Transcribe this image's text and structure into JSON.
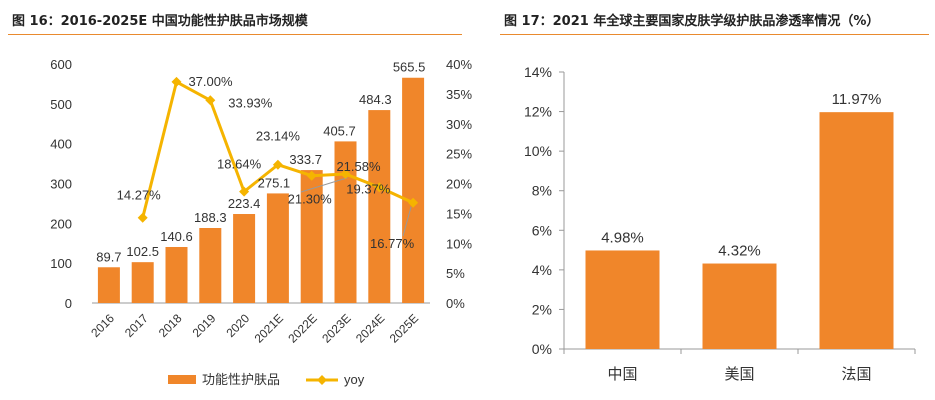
{
  "colors": {
    "bar": "#f0862a",
    "line": "#f5b400",
    "title_rule": "#e98a2e",
    "axis": "#999999",
    "text": "#333333"
  },
  "left": {
    "fig_title": "图 16：2016-2025E 中国功能性护肤品市场规模",
    "legend": {
      "bar_label": "功能性护肤品",
      "line_label": "yoy"
    }
  },
  "right": {
    "fig_title": "图 17：2021 年全球主要国家皮肤学级护肤品渗透率情况（%）"
  },
  "chart_data": [
    {
      "type": "bar",
      "categories": [
        "2016",
        "2017",
        "2018",
        "2019",
        "2020",
        "2021E",
        "2022E",
        "2023E",
        "2024E",
        "2025E"
      ],
      "series": [
        {
          "name": "功能性护肤品",
          "type": "bar",
          "axis": "left",
          "values": [
            89.7,
            102.5,
            140.6,
            188.3,
            223.4,
            275.1,
            333.7,
            405.7,
            484.3,
            565.5
          ],
          "labels": [
            "89.7",
            "102.5",
            "140.6",
            "188.3",
            "223.4",
            "275.1",
            "333.7",
            "405.7",
            "484.3",
            "565.5"
          ]
        },
        {
          "name": "yoy",
          "type": "line",
          "axis": "right",
          "values": [
            null,
            14.27,
            37.0,
            33.93,
            18.64,
            23.14,
            21.3,
            21.58,
            19.37,
            16.77
          ],
          "labels": [
            "",
            "14.27%",
            "37.00%",
            "33.93%",
            "18.64%",
            "23.14%",
            "21.30%",
            "21.58%",
            "19.37%",
            "16.77%"
          ]
        }
      ],
      "ylim": [
        0,
        600
      ],
      "yticks": [
        "0",
        "100",
        "200",
        "300",
        "400",
        "500",
        "600"
      ],
      "y2lim": [
        0,
        40
      ],
      "y2ticks": [
        "0%",
        "5%",
        "10%",
        "15%",
        "20%",
        "25%",
        "30%",
        "35%",
        "40%"
      ],
      "legend": "bottom",
      "grid": false
    },
    {
      "type": "bar",
      "categories": [
        "中国",
        "美国",
        "法国"
      ],
      "values": [
        4.98,
        4.32,
        11.97
      ],
      "labels": [
        "4.98%",
        "4.32%",
        "11.97%"
      ],
      "ylim": [
        0,
        14
      ],
      "yticks": [
        "0%",
        "2%",
        "4%",
        "6%",
        "8%",
        "10%",
        "12%",
        "14%"
      ],
      "grid": false
    }
  ]
}
